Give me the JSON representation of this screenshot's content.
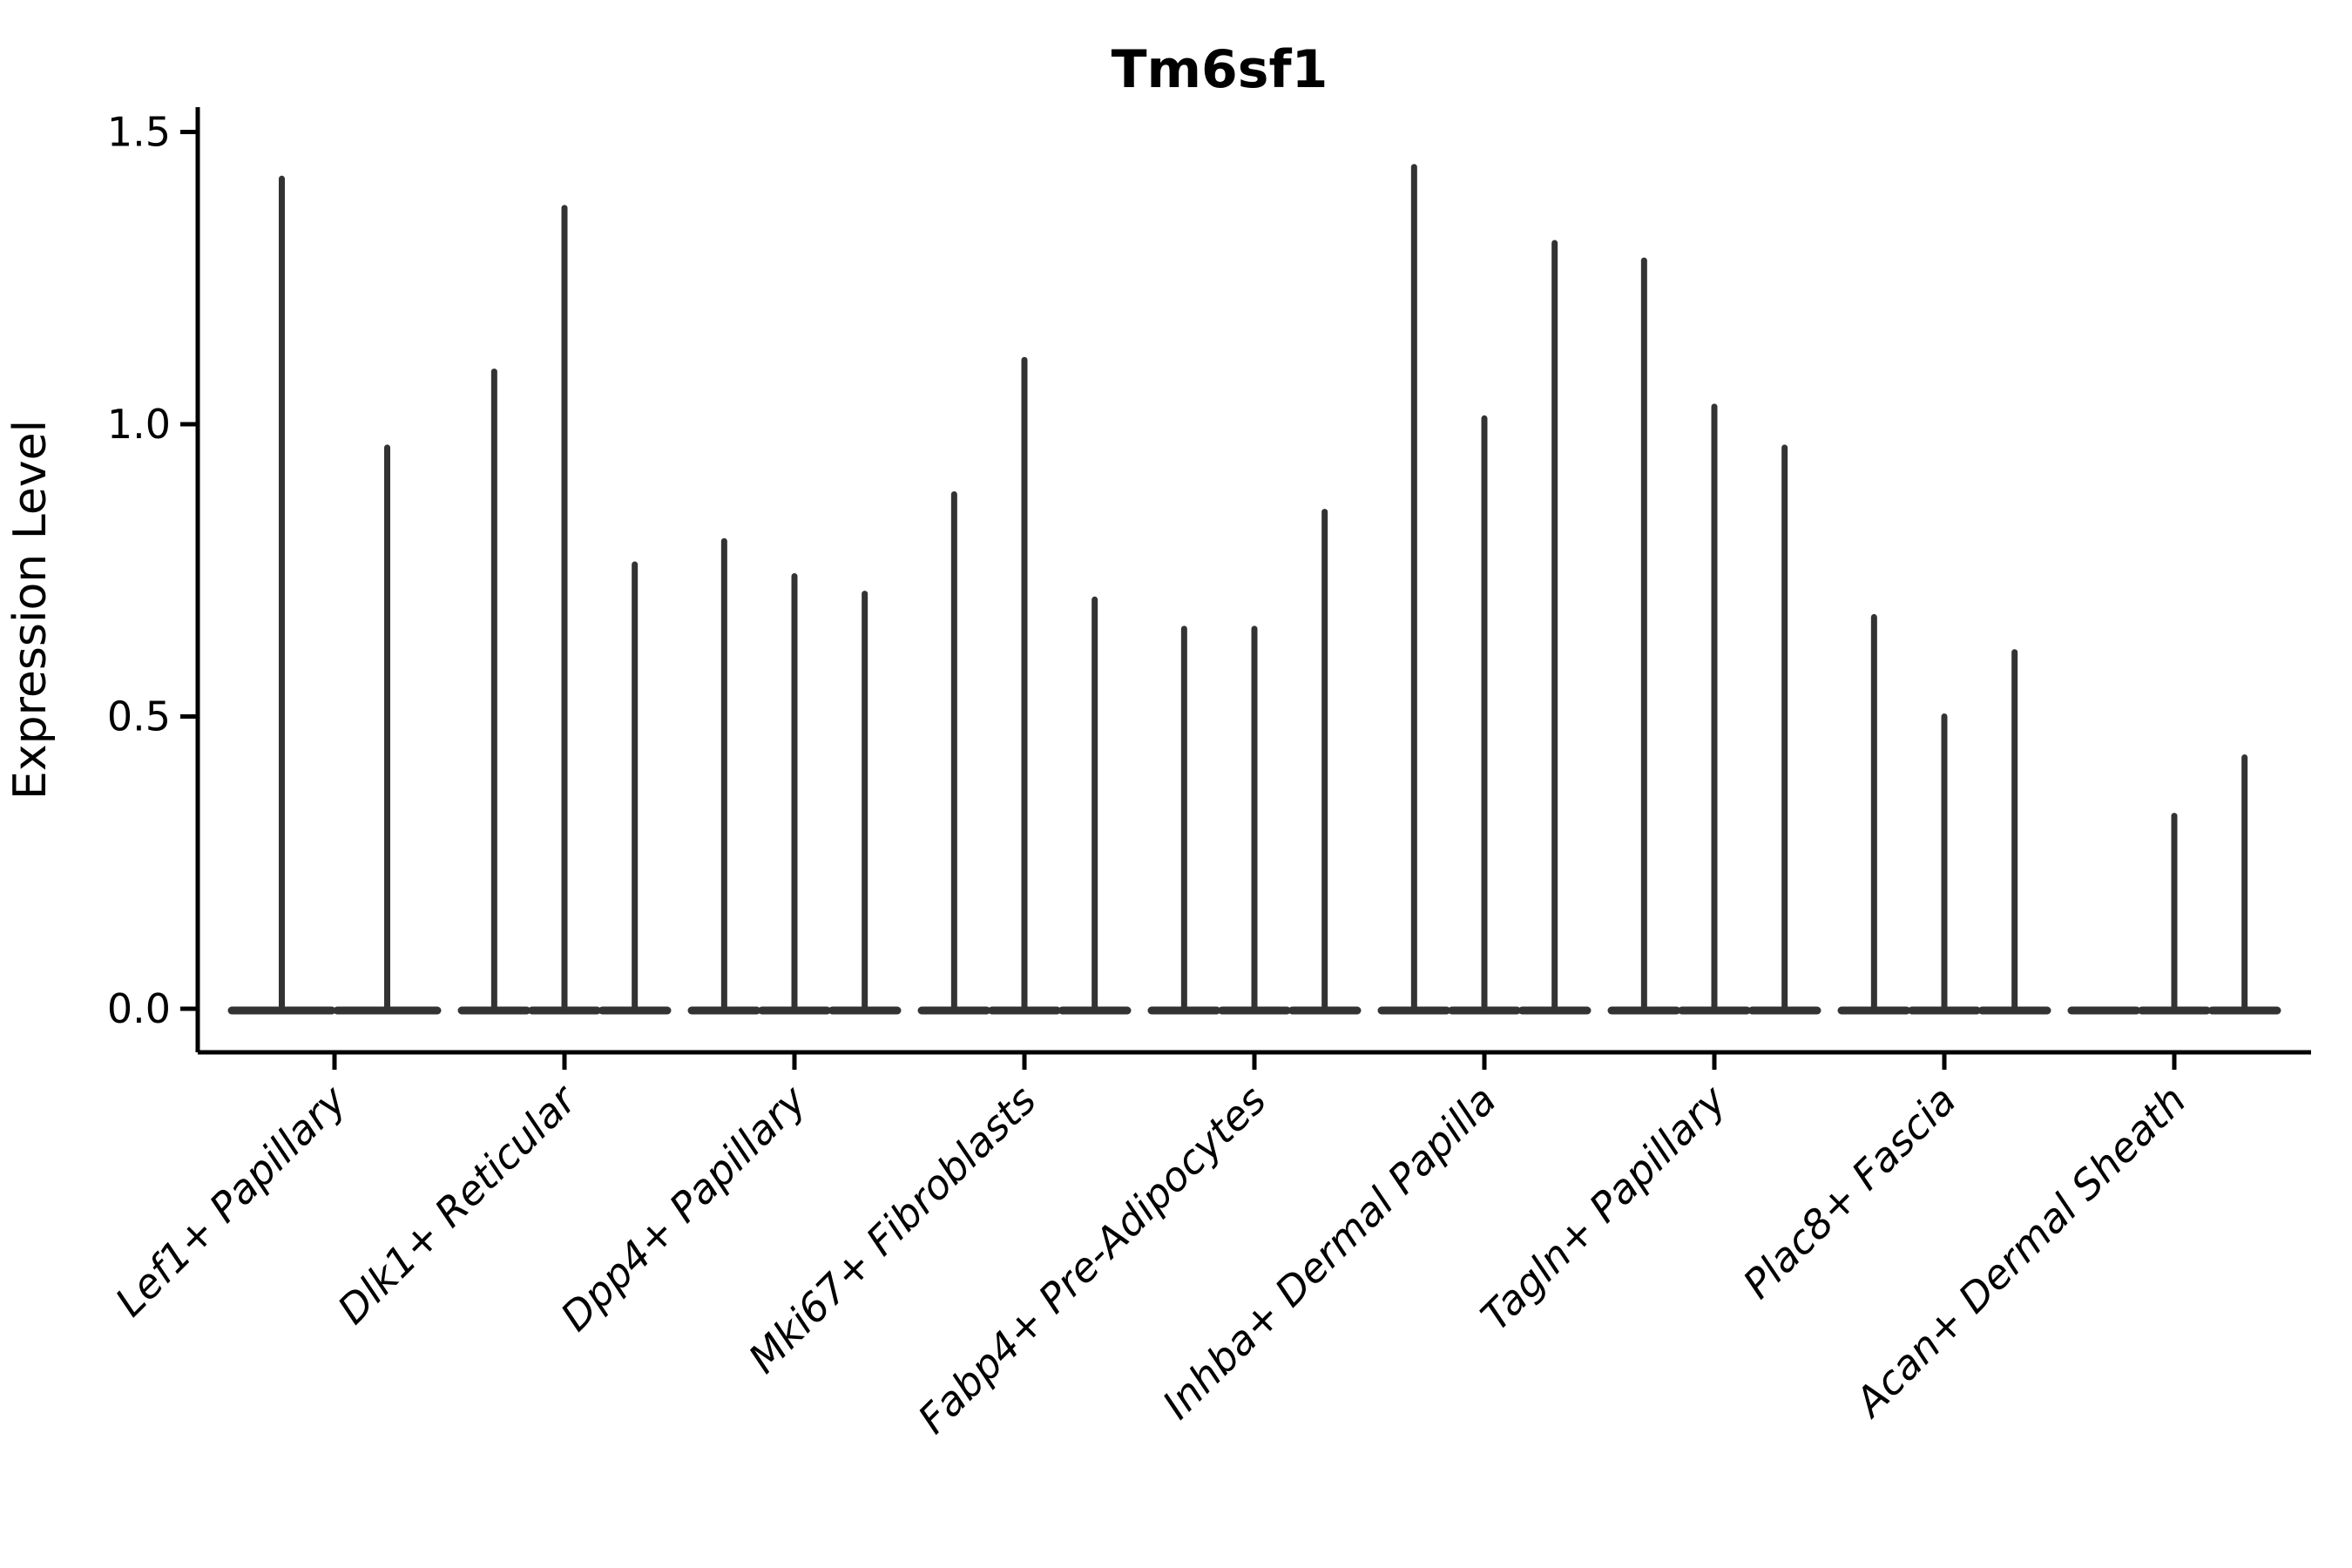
{
  "chart_data": {
    "type": "violin",
    "title": "Tm6sf1",
    "ylabel": "Expression Level",
    "xlabel": "",
    "grid": false,
    "legend": "none",
    "ylim": [
      -0.075,
      1.54
    ],
    "yticks": [
      0.0,
      0.5,
      1.0,
      1.5
    ],
    "ytick_labels": [
      "0.0",
      "0.5",
      "1.0",
      "1.5"
    ],
    "baseline_value": 0.0,
    "categories": [
      "Lef1+ Papillary",
      "Dlk1+ Reticular",
      "Dpp4+ Papillary",
      "Mki67+ Fibroblasts",
      "Fabp4+ Pre-Adipocytes",
      "Inhba+ Dermal Papilla",
      "Tagln+ Papillary",
      "Plac8+ Fascia",
      "Acan+ Dermal Sheath"
    ],
    "groups": [
      {
        "category": "Lef1+ Papillary",
        "violin_maxima": [
          1.42,
          0.96
        ]
      },
      {
        "category": "Dlk1+ Reticular",
        "violin_maxima": [
          1.09,
          1.37,
          0.76
        ]
      },
      {
        "category": "Dpp4+ Papillary",
        "violin_maxima": [
          0.8,
          0.74,
          0.71
        ]
      },
      {
        "category": "Mki67+ Fibroblasts",
        "violin_maxima": [
          0.88,
          1.11,
          0.7
        ]
      },
      {
        "category": "Fabp4+ Pre-Adipocytes",
        "violin_maxima": [
          0.65,
          0.65,
          0.85
        ]
      },
      {
        "category": "Inhba+ Dermal Papilla",
        "violin_maxima": [
          1.44,
          1.01,
          1.31
        ]
      },
      {
        "category": "Tagln+ Papillary",
        "violin_maxima": [
          1.28,
          1.03,
          0.96
        ]
      },
      {
        "category": "Plac8+ Fascia",
        "violin_maxima": [
          0.67,
          0.5,
          0.61
        ]
      },
      {
        "category": "Acan+ Dermal Sheath",
        "violin_maxima": [
          0.0,
          0.33,
          0.43
        ]
      }
    ],
    "colors": {
      "violin": "#333333",
      "axis": "#000000",
      "background": "#ffffff"
    }
  }
}
